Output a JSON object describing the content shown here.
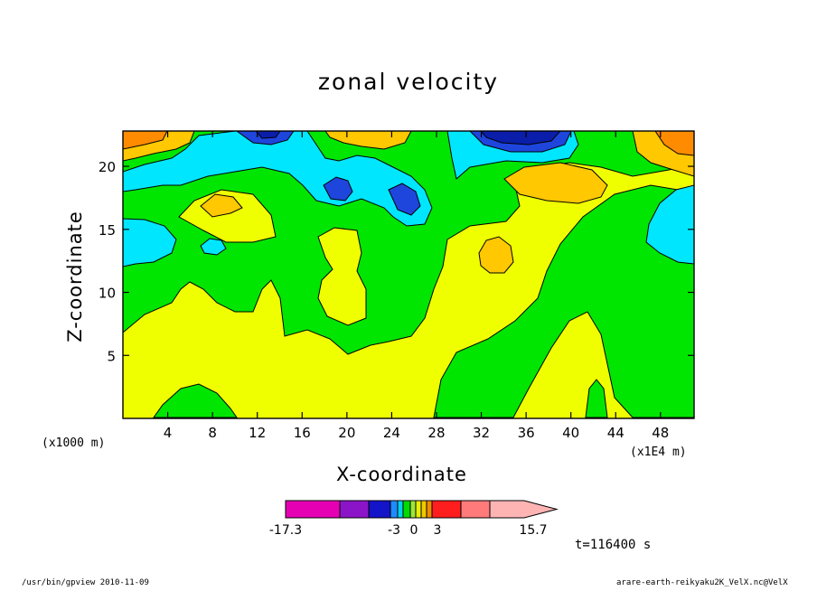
{
  "chart_data": {
    "type": "heatmap",
    "title": "zonal velocity",
    "xlabel": "X-coordinate",
    "ylabel": "Z-coordinate",
    "x_unit_left": "(x1000 m)",
    "x_unit_right": "(x1E4 m)",
    "xticks": [
      4,
      8,
      12,
      16,
      20,
      24,
      28,
      32,
      36,
      40,
      44,
      48
    ],
    "yticks": [
      5,
      10,
      15,
      20
    ],
    "xlim": [
      0,
      51
    ],
    "ylim": [
      0,
      22.8
    ],
    "time_label": "t=116400 s",
    "colorbar": {
      "colors": [
        "#e600b4",
        "#8c14c8",
        "#1414c8",
        "#1e8cff",
        "#00d2f0",
        "#00dc00",
        "#a0e632",
        "#e6f000",
        "#f0c800",
        "#f08c00",
        "#ff1e1e",
        "#ff7a7a",
        "#ffb4b4"
      ],
      "tick_labels": [
        "-17.3",
        "-3",
        "0",
        "3",
        "15.7"
      ]
    },
    "levels_palette": {
      "dark_blue": "#0a1eaa",
      "blue": "#1e46dc",
      "cyan": "#00e6ff",
      "green": "#00e600",
      "yellow": "#f0ff00",
      "gold": "#ffc800",
      "orange": "#ff8c00",
      "red_orange": "#ff5a00"
    }
  },
  "footer": {
    "left": "/usr/bin/gpview   2010-11-09",
    "right": "arare-earth-reikyaku2K_VelX.nc@VelX"
  }
}
